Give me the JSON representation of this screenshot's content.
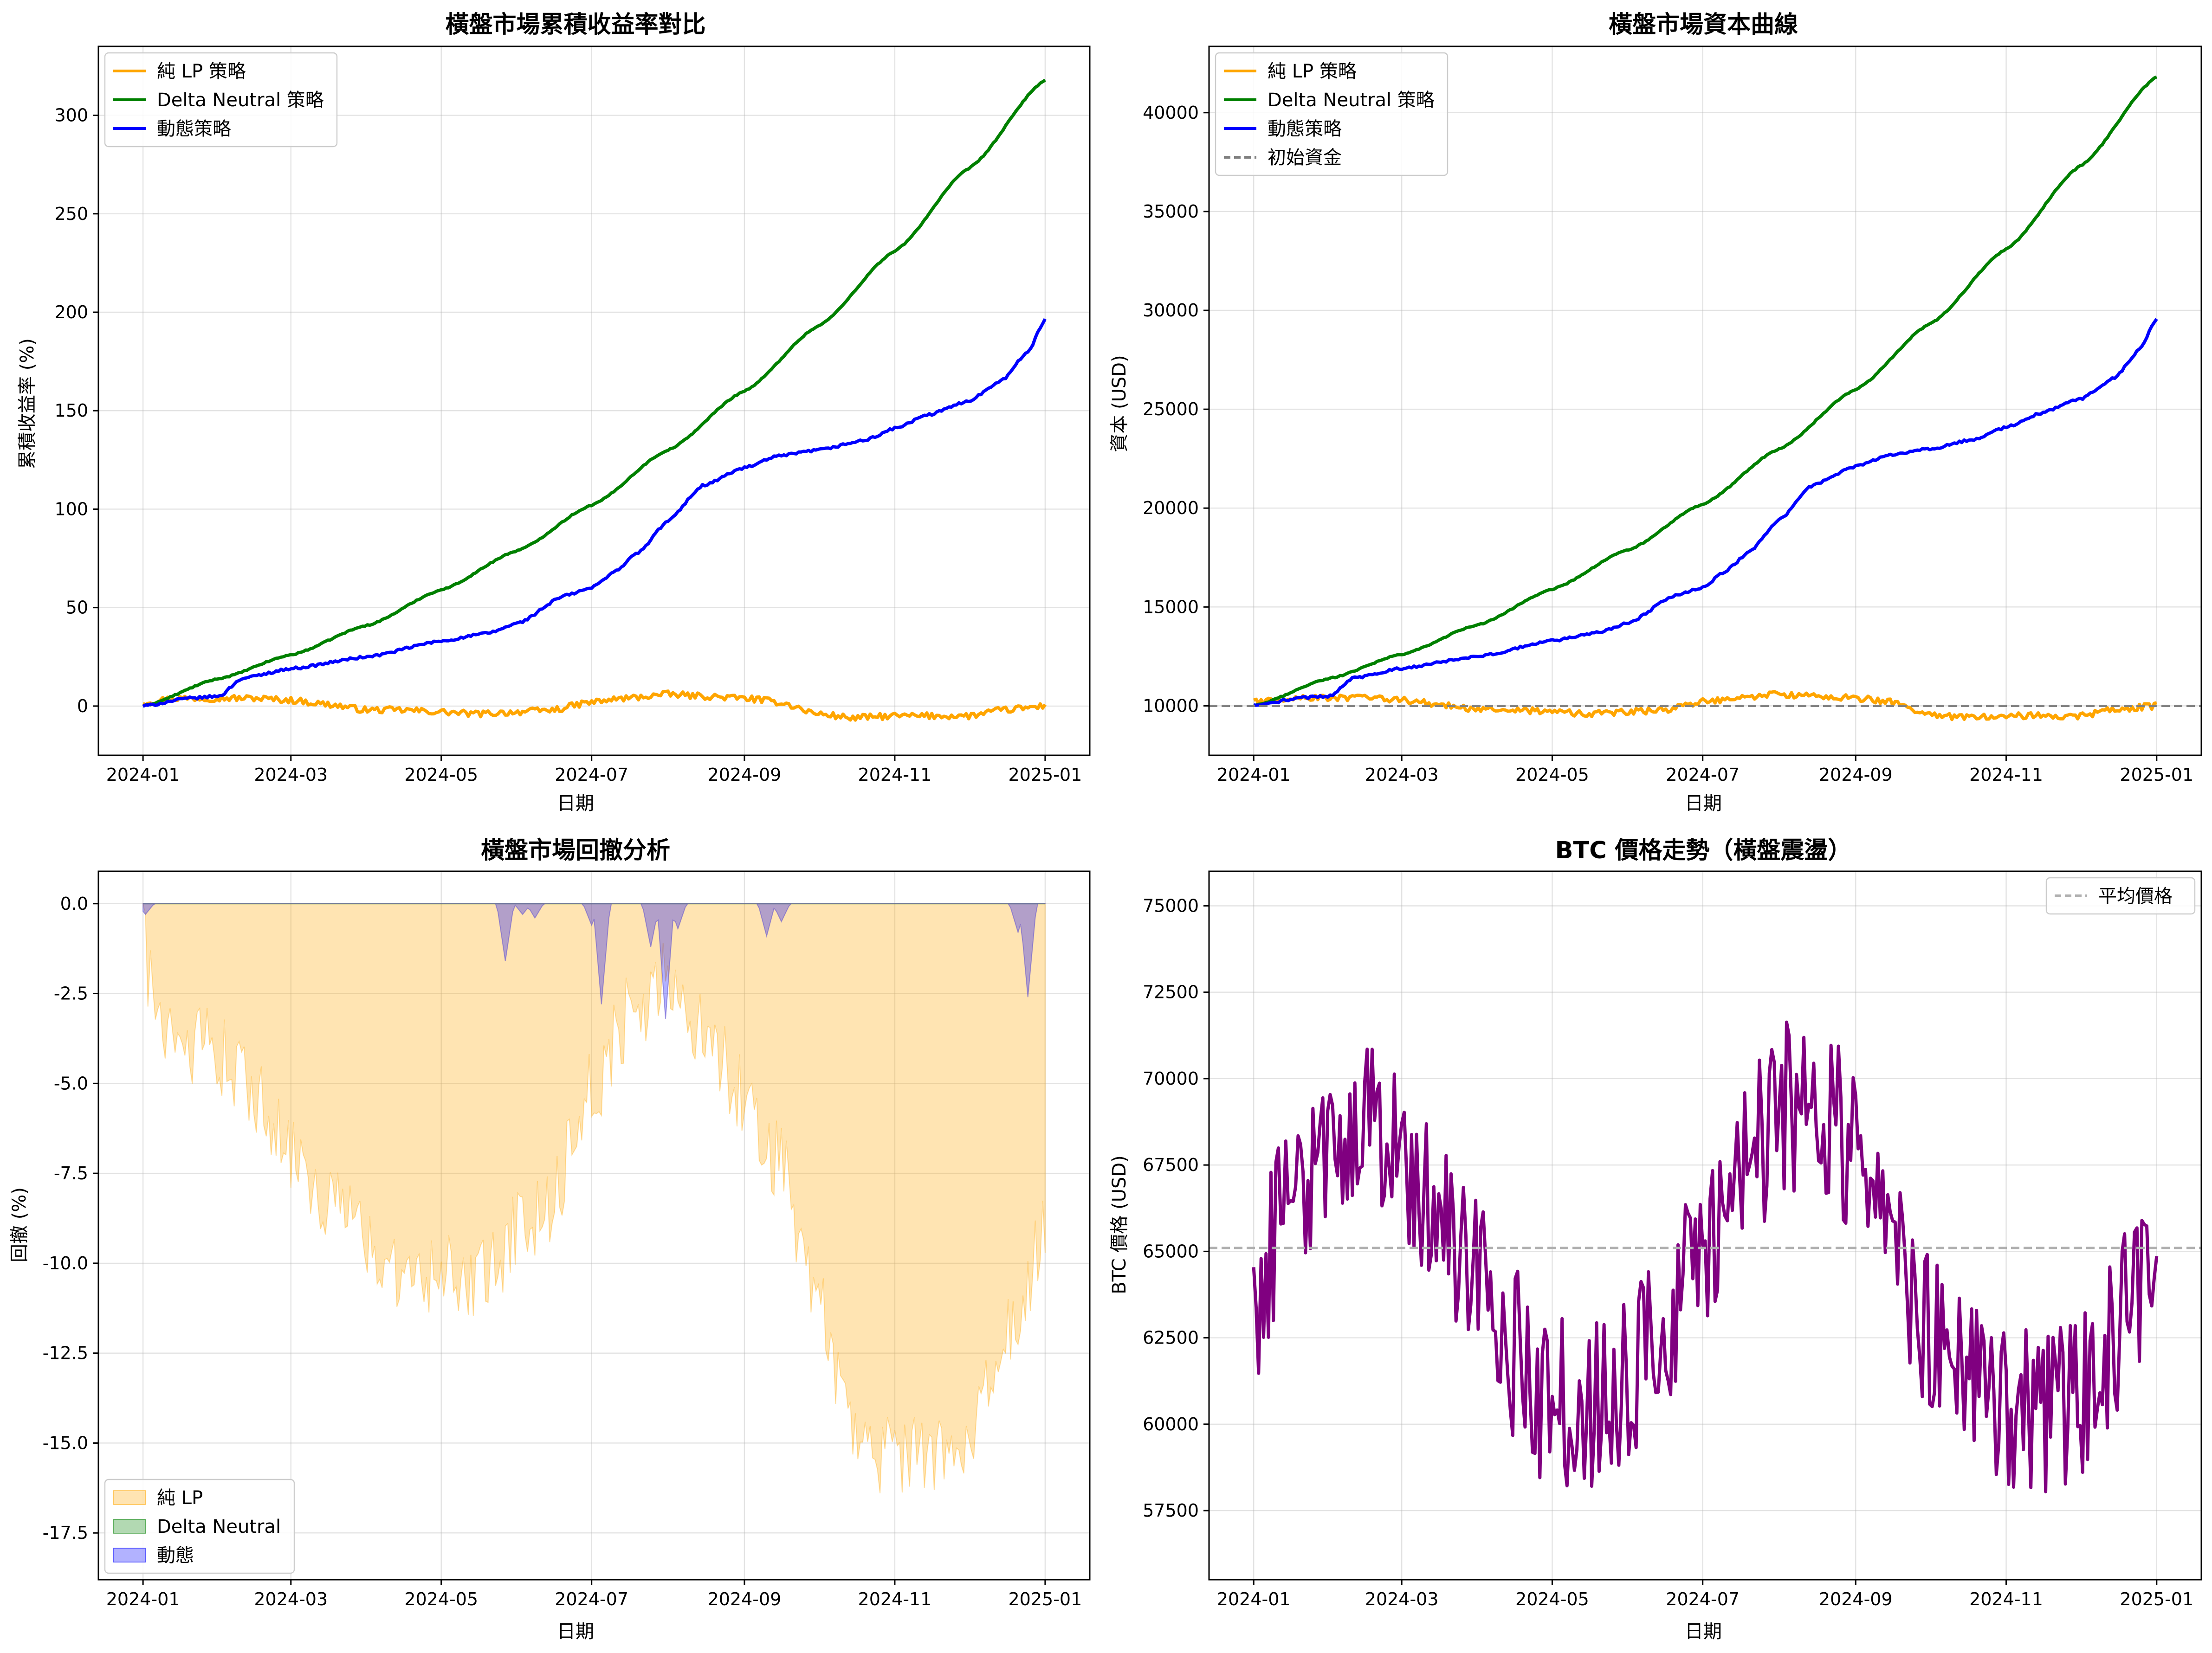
{
  "chart_data": [
    {
      "id": "cumret",
      "type": "line",
      "title": "橫盤市場累積收益率對比",
      "xlabel": "日期",
      "ylabel": "累積收益率 (%)",
      "x_range": [
        "2024-01-01",
        "2025-01-01"
      ],
      "xticks": [
        "2024-01",
        "2024-03",
        "2024-05",
        "2024-07",
        "2024-09",
        "2024-11",
        "2025-01"
      ],
      "ylim": [
        -25,
        335
      ],
      "yticks": [
        0,
        50,
        100,
        150,
        200,
        250,
        300
      ],
      "grid": true,
      "legend_position": "upper left",
      "series": [
        {
          "name": "純 LP 策略",
          "color": "#FFA500",
          "noise": 1.6,
          "points": [
            [
              "2024-01-01",
              2
            ],
            [
              "2024-01-15",
              4
            ],
            [
              "2024-02-01",
              4
            ],
            [
              "2024-02-15",
              4
            ],
            [
              "2024-03-01",
              3
            ],
            [
              "2024-03-15",
              1
            ],
            [
              "2024-04-01",
              -2
            ],
            [
              "2024-04-15",
              -2
            ],
            [
              "2024-05-01",
              -3
            ],
            [
              "2024-05-15",
              -4
            ],
            [
              "2024-06-01",
              -3
            ],
            [
              "2024-06-15",
              -2
            ],
            [
              "2024-07-01",
              2
            ],
            [
              "2024-07-15",
              4
            ],
            [
              "2024-08-01",
              6
            ],
            [
              "2024-08-15",
              5
            ],
            [
              "2024-09-01",
              4
            ],
            [
              "2024-09-15",
              2
            ],
            [
              "2024-10-01",
              -4
            ],
            [
              "2024-10-15",
              -6
            ],
            [
              "2024-11-01",
              -5
            ],
            [
              "2024-11-15",
              -5
            ],
            [
              "2024-12-01",
              -5
            ],
            [
              "2024-12-15",
              -2
            ],
            [
              "2025-01-01",
              0
            ]
          ]
        },
        {
          "name": "Delta Neutral 策略",
          "color": "#008000",
          "noise": 0.3,
          "points": [
            [
              "2024-01-01",
              0
            ],
            [
              "2024-02-01",
              14
            ],
            [
              "2024-03-01",
              26
            ],
            [
              "2024-04-01",
              41
            ],
            [
              "2024-05-01",
              59
            ],
            [
              "2024-06-01",
              79
            ],
            [
              "2024-07-01",
              102
            ],
            [
              "2024-08-01",
              130
            ],
            [
              "2024-09-01",
              160
            ],
            [
              "2024-10-01",
              193
            ],
            [
              "2024-11-01",
              231
            ],
            [
              "2024-12-01",
              273
            ],
            [
              "2025-01-01",
              318
            ]
          ]
        },
        {
          "name": "動態策略",
          "color": "#0000FF",
          "noise": 0.6,
          "points": [
            [
              "2024-01-01",
              0
            ],
            [
              "2024-01-20",
              4
            ],
            [
              "2024-02-01",
              5
            ],
            [
              "2024-02-10",
              14
            ],
            [
              "2024-03-01",
              19
            ],
            [
              "2024-04-01",
              25
            ],
            [
              "2024-05-01",
              33
            ],
            [
              "2024-05-20",
              37
            ],
            [
              "2024-06-01",
              42
            ],
            [
              "2024-06-20",
              56
            ],
            [
              "2024-07-01",
              60
            ],
            [
              "2024-07-10",
              68
            ],
            [
              "2024-07-20",
              78
            ],
            [
              "2024-08-01",
              94
            ],
            [
              "2024-08-15",
              112
            ],
            [
              "2024-09-01",
              121
            ],
            [
              "2024-09-15",
              127
            ],
            [
              "2024-10-01",
              130
            ],
            [
              "2024-10-20",
              135
            ],
            [
              "2024-11-01",
              141
            ],
            [
              "2024-11-15",
              148
            ],
            [
              "2024-12-01",
              155
            ],
            [
              "2024-12-15",
              166
            ],
            [
              "2024-12-25",
              180
            ],
            [
              "2025-01-01",
              196
            ]
          ]
        }
      ]
    },
    {
      "id": "equity",
      "type": "line",
      "title": "橫盤市場資本曲線",
      "xlabel": "日期",
      "ylabel": "資本 (USD)",
      "x_range": [
        "2024-01-01",
        "2025-01-01"
      ],
      "xticks": [
        "2024-01",
        "2024-03",
        "2024-05",
        "2024-07",
        "2024-09",
        "2024-11",
        "2025-01"
      ],
      "ylim": [
        7500,
        43350
      ],
      "yticks": [
        10000,
        15000,
        20000,
        25000,
        30000,
        35000,
        40000
      ],
      "grid": true,
      "legend_position": "upper left",
      "series": [
        {
          "name": "純 LP 策略",
          "color": "#FFA500",
          "noise": 160,
          "points": [
            [
              "2024-01-01",
              10200
            ],
            [
              "2024-01-15",
              10400
            ],
            [
              "2024-02-01",
              10400
            ],
            [
              "2024-02-15",
              10400
            ],
            [
              "2024-03-01",
              10300
            ],
            [
              "2024-03-15",
              10100
            ],
            [
              "2024-04-01",
              9800
            ],
            [
              "2024-04-15",
              9800
            ],
            [
              "2024-05-01",
              9700
            ],
            [
              "2024-05-15",
              9600
            ],
            [
              "2024-06-01",
              9700
            ],
            [
              "2024-06-15",
              9800
            ],
            [
              "2024-07-01",
              10200
            ],
            [
              "2024-07-15",
              10400
            ],
            [
              "2024-08-01",
              10600
            ],
            [
              "2024-08-15",
              10500
            ],
            [
              "2024-09-01",
              10400
            ],
            [
              "2024-09-15",
              10200
            ],
            [
              "2024-10-01",
              9600
            ],
            [
              "2024-10-15",
              9400
            ],
            [
              "2024-11-01",
              9500
            ],
            [
              "2024-11-15",
              9500
            ],
            [
              "2024-12-01",
              9500
            ],
            [
              "2024-12-15",
              9800
            ],
            [
              "2025-01-01",
              10000
            ]
          ]
        },
        {
          "name": "Delta Neutral 策略",
          "color": "#008000",
          "noise": 30,
          "points": [
            [
              "2024-01-01",
              10000
            ],
            [
              "2024-02-01",
              11400
            ],
            [
              "2024-03-01",
              12600
            ],
            [
              "2024-04-01",
              14100
            ],
            [
              "2024-05-01",
              15900
            ],
            [
              "2024-06-01",
              17900
            ],
            [
              "2024-07-01",
              20200
            ],
            [
              "2024-08-01",
              23000
            ],
            [
              "2024-09-01",
              26000
            ],
            [
              "2024-10-01",
              29300
            ],
            [
              "2024-11-01",
              33100
            ],
            [
              "2024-12-01",
              37300
            ],
            [
              "2025-01-01",
              41800
            ]
          ]
        },
        {
          "name": "動態策略",
          "color": "#0000FF",
          "noise": 60,
          "points": [
            [
              "2024-01-01",
              10000
            ],
            [
              "2024-01-20",
              10400
            ],
            [
              "2024-02-01",
              10500
            ],
            [
              "2024-02-10",
              11400
            ],
            [
              "2024-03-01",
              11900
            ],
            [
              "2024-04-01",
              12500
            ],
            [
              "2024-05-01",
              13300
            ],
            [
              "2024-05-20",
              13700
            ],
            [
              "2024-06-01",
              14200
            ],
            [
              "2024-06-20",
              15600
            ],
            [
              "2024-07-01",
              16000
            ],
            [
              "2024-07-10",
              16800
            ],
            [
              "2024-07-20",
              17800
            ],
            [
              "2024-08-01",
              19400
            ],
            [
              "2024-08-15",
              21200
            ],
            [
              "2024-09-01",
              22100
            ],
            [
              "2024-09-15",
              22700
            ],
            [
              "2024-10-01",
              23000
            ],
            [
              "2024-10-20",
              23500
            ],
            [
              "2024-11-01",
              24100
            ],
            [
              "2024-11-15",
              24800
            ],
            [
              "2024-12-01",
              25500
            ],
            [
              "2024-12-15",
              26600
            ],
            [
              "2024-12-25",
              28000
            ],
            [
              "2025-01-01",
              29600
            ]
          ]
        },
        {
          "name": "初始資金",
          "color": "#808080",
          "dashed": true,
          "horizontal": 10000
        }
      ]
    },
    {
      "id": "drawdown",
      "type": "area",
      "title": "橫盤市場回撤分析",
      "xlabel": "日期",
      "ylabel": "回撤 (%)",
      "x_range": [
        "2024-01-01",
        "2025-01-01"
      ],
      "xticks": [
        "2024-01",
        "2024-03",
        "2024-05",
        "2024-07",
        "2024-09",
        "2024-11",
        "2025-01"
      ],
      "ylim": [
        -18.8,
        0.9
      ],
      "yticks": [
        0.0,
        -2.5,
        -5.0,
        -7.5,
        -10.0,
        -12.5,
        -15.0,
        -17.5
      ],
      "ytick_labels": [
        "0.0",
        "-2.5",
        "-5.0",
        "-7.5",
        "-10.0",
        "-12.5",
        "-15.0",
        "-17.5"
      ],
      "grid": true,
      "legend_position": "lower left",
      "series": [
        {
          "name": "純 LP",
          "color": "#FFA500",
          "opacity": 0.3,
          "noise": 2.4,
          "points": [
            [
              "2024-01-01",
              0
            ],
            [
              "2024-01-05",
              -1.5
            ],
            [
              "2024-01-15",
              -2.5
            ],
            [
              "2024-02-01",
              -3
            ],
            [
              "2024-02-15",
              -4
            ],
            [
              "2024-03-01",
              -5.5
            ],
            [
              "2024-03-15",
              -7
            ],
            [
              "2024-04-01",
              -8
            ],
            [
              "2024-04-15",
              -9
            ],
            [
              "2024-05-01",
              -9
            ],
            [
              "2024-05-15",
              -9.5
            ],
            [
              "2024-06-01",
              -8
            ],
            [
              "2024-06-15",
              -7
            ],
            [
              "2024-07-01",
              -4
            ],
            [
              "2024-07-15",
              -2
            ],
            [
              "2024-08-01",
              -1
            ],
            [
              "2024-08-15",
              -2.5
            ],
            [
              "2024-09-01",
              -4
            ],
            [
              "2024-09-15",
              -6
            ],
            [
              "2024-10-01",
              -10
            ],
            [
              "2024-10-15",
              -14
            ],
            [
              "2024-11-01",
              -14
            ],
            [
              "2024-11-15",
              -14
            ],
            [
              "2024-12-01",
              -13.5
            ],
            [
              "2024-12-15",
              -11
            ],
            [
              "2025-01-01",
              -8
            ]
          ]
        },
        {
          "name": "Delta Neutral",
          "color": "#008000",
          "opacity": 0.3,
          "points": [
            [
              "2024-01-01",
              0
            ],
            [
              "2025-01-01",
              0
            ]
          ]
        },
        {
          "name": "動態",
          "color": "#0000FF",
          "opacity": 0.3,
          "dips": [
            [
              "2024-01-02",
              -0.3
            ],
            [
              "2024-05-27",
              -1.6
            ],
            [
              "2024-06-03",
              -0.3
            ],
            [
              "2024-06-08",
              -0.4
            ],
            [
              "2024-07-01",
              -0.6
            ],
            [
              "2024-07-05",
              -2.8
            ],
            [
              "2024-07-25",
              -1.2
            ],
            [
              "2024-07-31",
              -3.2
            ],
            [
              "2024-08-05",
              -0.7
            ],
            [
              "2024-09-10",
              -0.9
            ],
            [
              "2024-09-16",
              -0.5
            ],
            [
              "2024-12-21",
              -0.8
            ],
            [
              "2024-12-25",
              -2.6
            ]
          ]
        }
      ]
    },
    {
      "id": "btc",
      "type": "line",
      "title": "BTC 價格走勢（橫盤震盪）",
      "xlabel": "日期",
      "ylabel": "BTC 價格 (USD)",
      "x_range": [
        "2024-01-01",
        "2025-01-01"
      ],
      "xticks": [
        "2024-01",
        "2024-03",
        "2024-05",
        "2024-07",
        "2024-09",
        "2024-11",
        "2025-01"
      ],
      "ylim": [
        55500,
        76000
      ],
      "yticks": [
        57500,
        60000,
        62500,
        65000,
        67500,
        70000,
        72500,
        75000
      ],
      "grid": true,
      "legend_position": "upper right",
      "series": [
        {
          "name": "BTC",
          "color": "#800080",
          "noise": 2600,
          "points": [
            [
              "2024-01-01",
              63000
            ],
            [
              "2024-01-15",
              66500
            ],
            [
              "2024-02-01",
              68500
            ],
            [
              "2024-02-15",
              69500
            ],
            [
              "2024-03-01",
              68000
            ],
            [
              "2024-03-15",
              66500
            ],
            [
              "2024-04-01",
              64000
            ],
            [
              "2024-04-15",
              62000
            ],
            [
              "2024-05-01",
              60500
            ],
            [
              "2024-05-15",
              60500
            ],
            [
              "2024-06-01",
              61500
            ],
            [
              "2024-06-15",
              62500
            ],
            [
              "2024-07-01",
              65000
            ],
            [
              "2024-07-15",
              67000
            ],
            [
              "2024-08-01",
              69000
            ],
            [
              "2024-08-15",
              69500
            ],
            [
              "2024-09-01",
              68000
            ],
            [
              "2024-09-15",
              66000
            ],
            [
              "2024-10-01",
              62500
            ],
            [
              "2024-10-15",
              61500
            ],
            [
              "2024-11-01",
              60500
            ],
            [
              "2024-11-15",
              60000
            ],
            [
              "2024-12-01",
              61000
            ],
            [
              "2024-12-15",
              62500
            ],
            [
              "2025-01-01",
              65000
            ]
          ]
        },
        {
          "name": "平均價格",
          "color": "#b0b0b0",
          "dashed": true,
          "horizontal": 65100
        }
      ]
    }
  ]
}
